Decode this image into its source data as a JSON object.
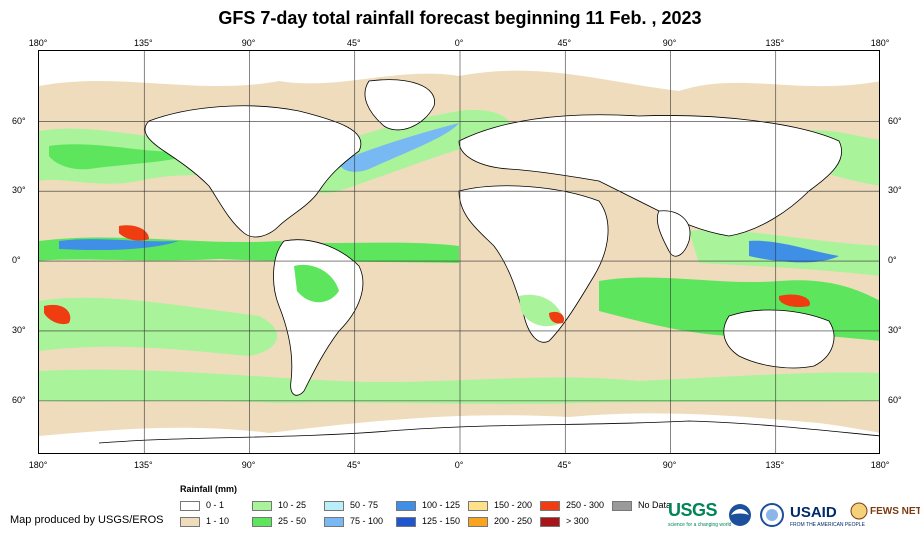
{
  "title": "GFS 7-day total rainfall forecast beginning 11 Feb. , 2023",
  "axes": {
    "longitude_ticks": [
      "180°",
      "135°",
      "90°",
      "45°",
      "0°",
      "45°",
      "90°",
      "135°",
      "180°"
    ],
    "latitude_ticks": [
      "60°",
      "30°",
      "0°",
      "30°",
      "60°"
    ]
  },
  "legend": {
    "title": "Rainfall (mm)",
    "items": [
      {
        "label": "0 - 1",
        "color": "#ffffff"
      },
      {
        "label": "1 - 10",
        "color": "#efdcbd"
      },
      {
        "label": "10 - 25",
        "color": "#a9f39a"
      },
      {
        "label": "25 - 50",
        "color": "#5ee55e"
      },
      {
        "label": "50 - 75",
        "color": "#b9eefa"
      },
      {
        "label": "75 - 100",
        "color": "#78b8f3"
      },
      {
        "label": "100 - 125",
        "color": "#3f8fe7"
      },
      {
        "label": "125 - 150",
        "color": "#1f56cf"
      },
      {
        "label": "150 - 200",
        "color": "#fde28a"
      },
      {
        "label": "200 - 250",
        "color": "#f9a41e"
      },
      {
        "label": "250 - 300",
        "color": "#ef3c11"
      },
      {
        "label": "> 300",
        "color": "#a8161b"
      },
      {
        "label": "No Data",
        "color": "#9a9a9a"
      }
    ]
  },
  "credit": "Map produced by USGS/EROS",
  "logos": {
    "usgs": "USGS",
    "usgs_tagline": "science for a changing world",
    "noaa": "noaa-logo",
    "doi": "doi-logo",
    "usaid": "USAID",
    "usaid_tagline": "FROM THE AMERICAN PEOPLE",
    "fews": "FEWS NET"
  }
}
